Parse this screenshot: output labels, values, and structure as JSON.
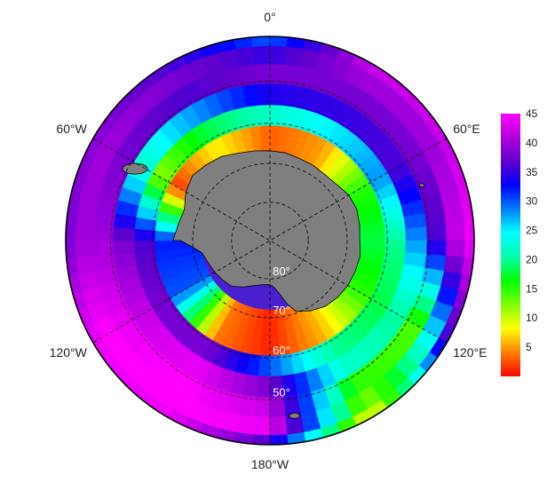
{
  "map": {
    "projection": "south-polar-stereographic",
    "longitude_labels": [
      {
        "lon": 0,
        "text": "0°"
      },
      {
        "lon": -60,
        "text": "60°W"
      },
      {
        "lon": 60,
        "text": "60°E"
      },
      {
        "lon": -120,
        "text": "120°W"
      },
      {
        "lon": 120,
        "text": "120°E"
      },
      {
        "lon": 180,
        "text": "180°W"
      }
    ],
    "latitude_labels": [
      {
        "lat": -80,
        "text": "80°"
      },
      {
        "lat": -70,
        "text": "70°"
      },
      {
        "lat": -60,
        "text": "60°"
      },
      {
        "lat": -50,
        "text": "50°"
      }
    ],
    "land_color": "#7f7f7f",
    "coastline_color": "#000000",
    "grid": true
  },
  "colorbar": {
    "min": 0,
    "max": 45,
    "ticks": [
      {
        "value": 5,
        "text": "5"
      },
      {
        "value": 10,
        "text": "10"
      },
      {
        "value": 15,
        "text": "15"
      },
      {
        "value": 20,
        "text": "20"
      },
      {
        "value": 25,
        "text": "25"
      },
      {
        "value": 30,
        "text": "30"
      },
      {
        "value": 35,
        "text": "35"
      },
      {
        "value": 40,
        "text": "40"
      },
      {
        "value": 45,
        "text": "45"
      }
    ],
    "colormap": [
      "#ff0000",
      "#ff8000",
      "#ffff00",
      "#80ff00",
      "#00ff00",
      "#00ffaa",
      "#00ffff",
      "#0080ff",
      "#0000ff",
      "#6000cc",
      "#b000e0",
      "#ff00ff"
    ]
  },
  "field": {
    "sectors": [
      {
        "lon": -60,
        "values": [
          2,
          12,
          22,
          38,
          40,
          39
        ]
      },
      {
        "lon": -30,
        "values": [
          8,
          18,
          28,
          36,
          38,
          36
        ]
      },
      {
        "lon": 0,
        "values": [
          3,
          22,
          34,
          38,
          35,
          30
        ]
      },
      {
        "lon": 30,
        "values": [
          5,
          25,
          35,
          38,
          40,
          42
        ]
      },
      {
        "lon": 60,
        "values": [
          15,
          28,
          36,
          38,
          40,
          42
        ]
      },
      {
        "lon": 90,
        "values": [
          18,
          20,
          28,
          36,
          42,
          44
        ]
      },
      {
        "lon": 120,
        "values": [
          15,
          18,
          20,
          14,
          25,
          35
        ]
      },
      {
        "lon": 150,
        "values": [
          6,
          20,
          22,
          15,
          12,
          8
        ]
      },
      {
        "lon": 180,
        "values": [
          1,
          30,
          38,
          42,
          44,
          36
        ]
      },
      {
        "lon": -150,
        "values": [
          4,
          38,
          44,
          45,
          45,
          44
        ]
      },
      {
        "lon": -120,
        "values": [
          30,
          38,
          42,
          44,
          45,
          44
        ]
      },
      {
        "lon": -90,
        "values": [
          32,
          36,
          38,
          40,
          40,
          38
        ]
      }
    ],
    "ring_latitudes": [
      -63,
      -58,
      -53,
      -48,
      -44,
      -40
    ]
  }
}
